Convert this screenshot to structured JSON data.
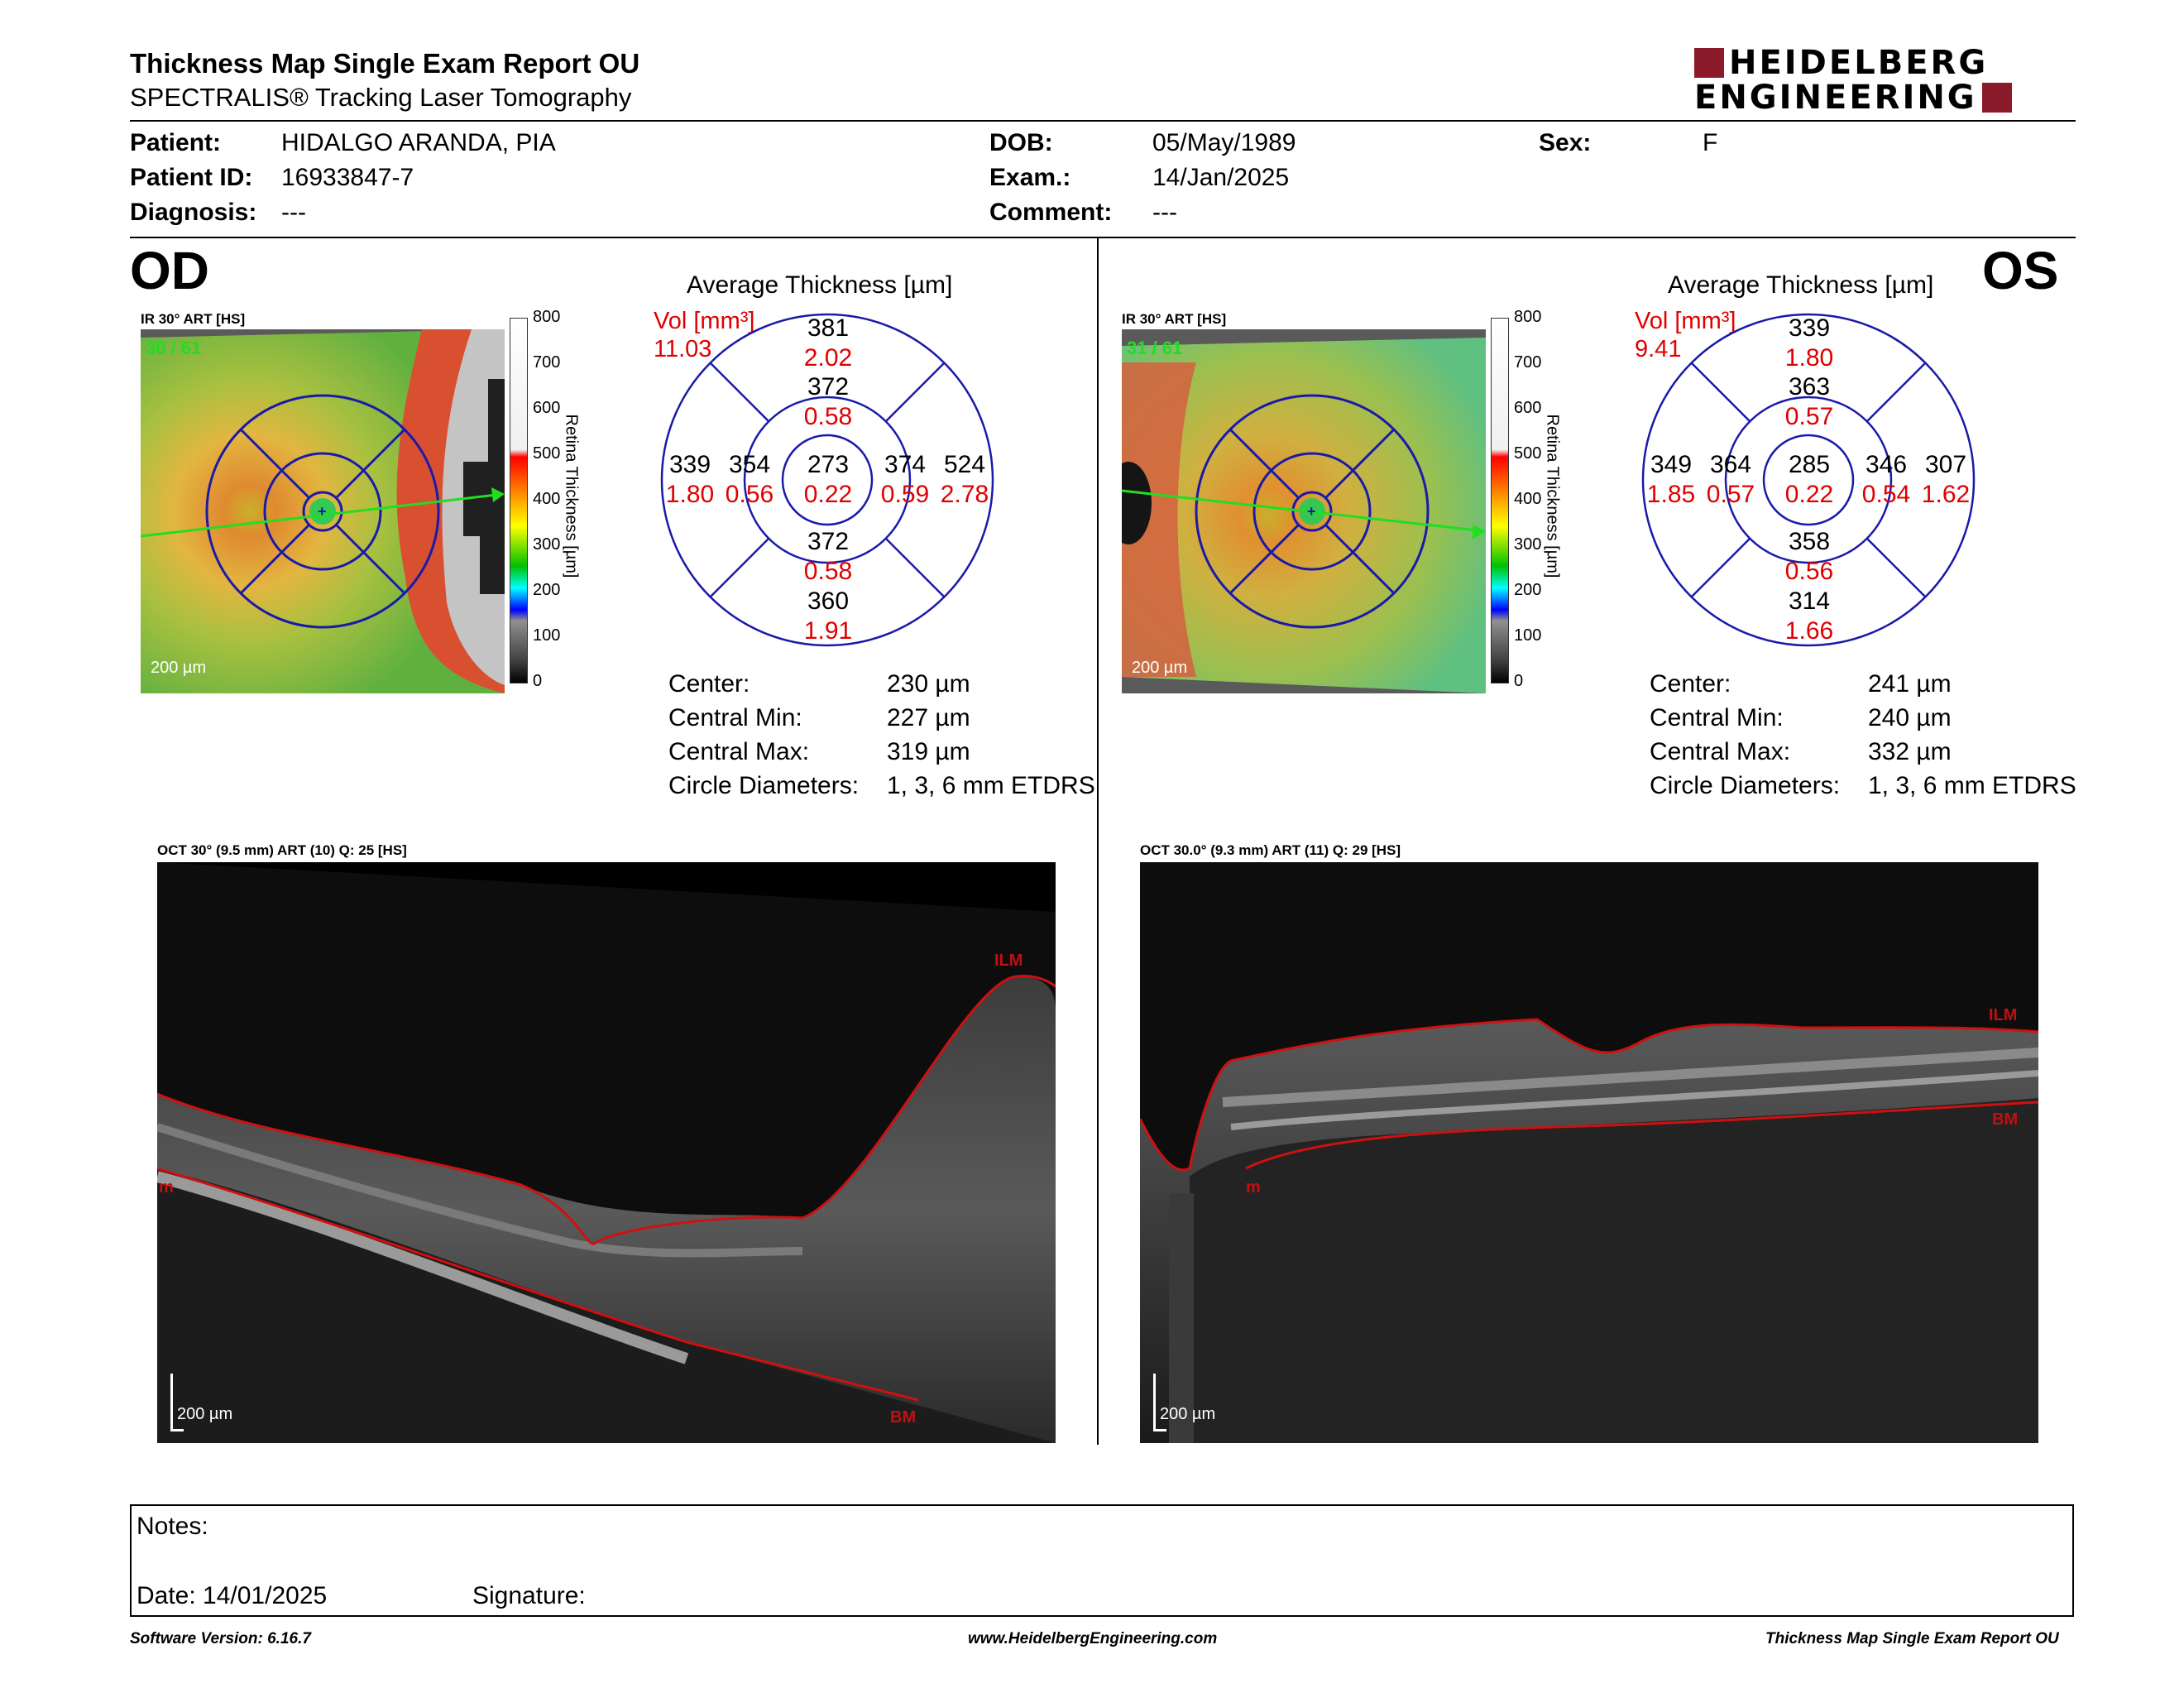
{
  "header": {
    "title": "Thickness Map Single Exam Report OU",
    "subtitle": "SPECTRALIS® Tracking Laser Tomography",
    "logo_line1": "HEIDELBERG",
    "logo_line2": "ENGINEERING"
  },
  "patient": {
    "patient_label": "Patient:",
    "patient": "HIDALGO ARANDA, PIA",
    "id_label": "Patient ID:",
    "id": "16933847-7",
    "diagnosis_label": "Diagnosis:",
    "diagnosis": "---",
    "dob_label": "DOB:",
    "dob": "05/May/1989",
    "exam_label": "Exam.:",
    "exam": "14/Jan/2025",
    "comment_label": "Comment:",
    "comment": "---",
    "sex_label": "Sex:",
    "sex": "F"
  },
  "scale_bar": {
    "ticks": [
      "800",
      "700",
      "600",
      "500",
      "400",
      "300",
      "200",
      "100",
      "0"
    ],
    "axis_label": "Retina  Thickness [µm]"
  },
  "od": {
    "eye": "OD",
    "ir_label": "IR 30° ART [HS]",
    "frames": "30 / 61",
    "scale": "200 µm",
    "avg_title": "Average Thickness [µm]",
    "vol_label": "Vol [mm³]",
    "vol_total": "11.03",
    "grid": {
      "center": [
        "273",
        "0.22"
      ],
      "inner_sup": [
        "372",
        "0.58"
      ],
      "inner_inf": [
        "372",
        "0.58"
      ],
      "inner_left": [
        "354",
        "0.56"
      ],
      "inner_right": [
        "374",
        "0.59"
      ],
      "outer_sup": [
        "381",
        "2.02"
      ],
      "outer_inf": [
        "360",
        "1.91"
      ],
      "outer_left": [
        "339",
        "1.80"
      ],
      "outer_right": [
        "524",
        "2.78"
      ]
    },
    "stats": [
      {
        "label": "Center:",
        "value": "230 µm"
      },
      {
        "label": "Central Min:",
        "value": "227 µm"
      },
      {
        "label": "Central Max:",
        "value": "319 µm"
      },
      {
        "label": "Circle Diameters:",
        "value": "1, 3, 6 mm ETDRS"
      }
    ],
    "oct_label": "OCT 30° (9.5 mm) ART (10) Q: 25 [HS]",
    "oct_scale": "200 µm",
    "ilm": "ILM",
    "bm": "BM",
    "m": "m"
  },
  "os": {
    "eye": "OS",
    "ir_label": "IR 30° ART [HS]",
    "frames": "31 / 61",
    "scale": "200 µm",
    "avg_title": "Average Thickness [µm]",
    "vol_label": "Vol [mm³]",
    "vol_total": "9.41",
    "grid": {
      "center": [
        "285",
        "0.22"
      ],
      "inner_sup": [
        "363",
        "0.57"
      ],
      "inner_inf": [
        "358",
        "0.56"
      ],
      "inner_left": [
        "364",
        "0.57"
      ],
      "inner_right": [
        "346",
        "0.54"
      ],
      "outer_sup": [
        "339",
        "1.80"
      ],
      "outer_inf": [
        "314",
        "1.66"
      ],
      "outer_left": [
        "349",
        "1.85"
      ],
      "outer_right": [
        "307",
        "1.62"
      ]
    },
    "stats": [
      {
        "label": "Center:",
        "value": "241 µm"
      },
      {
        "label": "Central Min:",
        "value": "240 µm"
      },
      {
        "label": "Central Max:",
        "value": "332 µm"
      },
      {
        "label": "Circle Diameters:",
        "value": "1, 3, 6 mm ETDRS"
      }
    ],
    "oct_label": "OCT 30.0° (9.3 mm) ART (11) Q: 29 [HS]",
    "oct_scale": "200 µm",
    "ilm": "ILM",
    "bm": "BM",
    "m": "m"
  },
  "notes": {
    "notes_label": "Notes:",
    "date_label": "Date: 14/01/2025",
    "signature_label": "Signature:"
  },
  "footer": {
    "software": "Software Version: 6.16.7",
    "website": "www.HeidelbergEngineering.com",
    "report": "Thickness Map Single Exam Report OU"
  },
  "colors": {
    "brand": "#8b1a2b",
    "value_red": "#e00000",
    "grid_blue": "#1a1aaa",
    "track_green": "#22dd22"
  }
}
